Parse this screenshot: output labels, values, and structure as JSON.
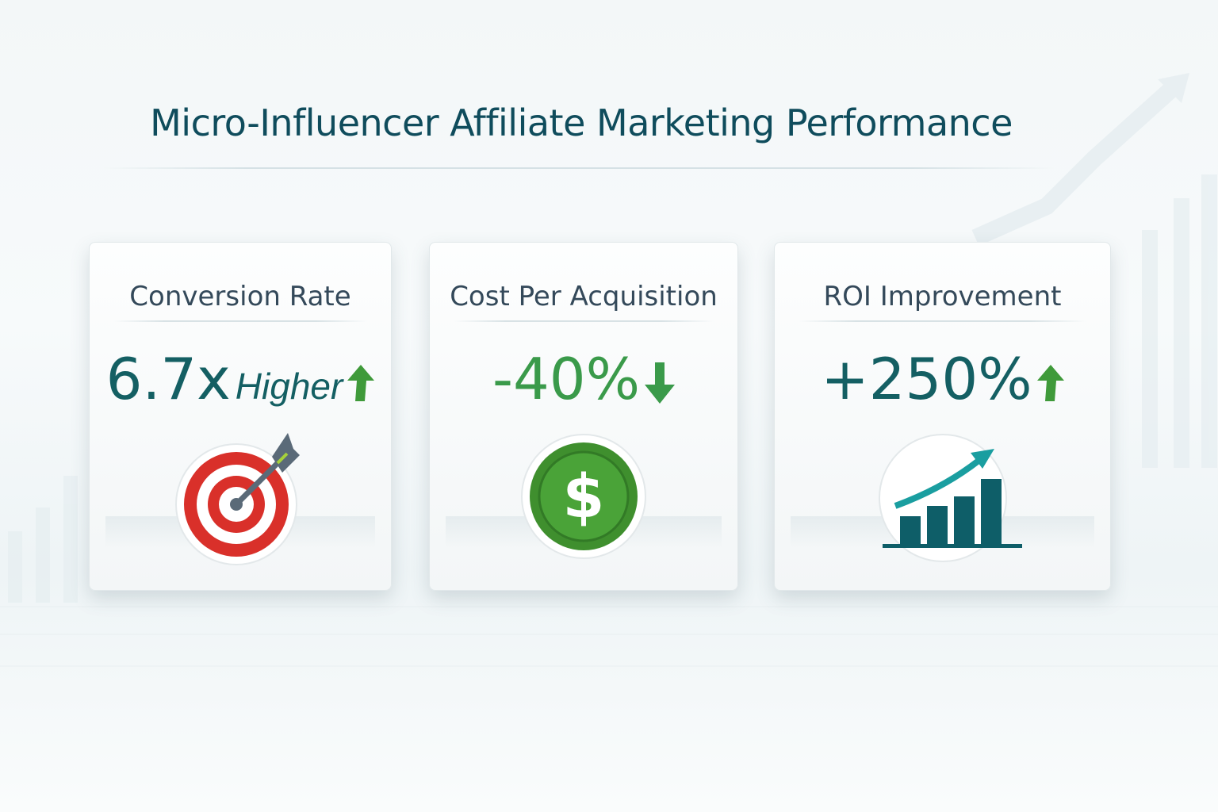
{
  "title": "Micro-Influencer Affiliate Marketing Performance",
  "colors": {
    "title": "#0f4c5c",
    "teal": "#145f63",
    "green": "#3a9a4a",
    "red": "#d9302a"
  },
  "cards": [
    {
      "label": "Conversion Rate",
      "value": "6.7x",
      "value_suffix": "Higher",
      "trend": "up",
      "icon": "target-icon"
    },
    {
      "label": "Cost Per Acquisition",
      "value": "-40%",
      "trend": "down",
      "icon": "dollar-coin-icon"
    },
    {
      "label": "ROI Improvement",
      "value": "+250%",
      "trend": "up",
      "icon": "growth-chart-icon"
    }
  ]
}
